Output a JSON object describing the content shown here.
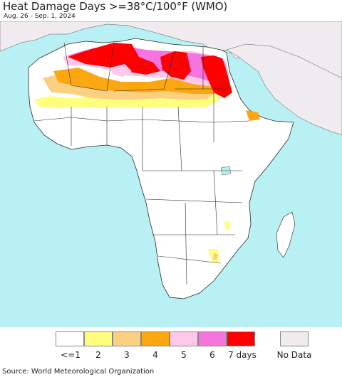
{
  "title": "Heat Damage Days >=38°C/100°F (WMO)",
  "subtitle": "Aug. 26 - Sep. 1, 2024",
  "source": "Source: World Meteorological Organization",
  "colors": {
    "ocean": "#b8f0f4",
    "land_no_data": "#efebef",
    "land_white": "#ffffff",
    "border": "#2a2a2a"
  },
  "legend": {
    "items": [
      {
        "label": "<=1",
        "color": "#ffffff"
      },
      {
        "label": "2",
        "color": "#ffff7f"
      },
      {
        "label": "3",
        "color": "#fbd181"
      },
      {
        "label": "4",
        "color": "#fba712"
      },
      {
        "label": "5",
        "color": "#fec8ea"
      },
      {
        "label": "6",
        "color": "#f574e0"
      },
      {
        "label": "7 days",
        "color": "#fd0000"
      }
    ],
    "no_data": {
      "label": "No Data",
      "color": "#efebef"
    }
  }
}
